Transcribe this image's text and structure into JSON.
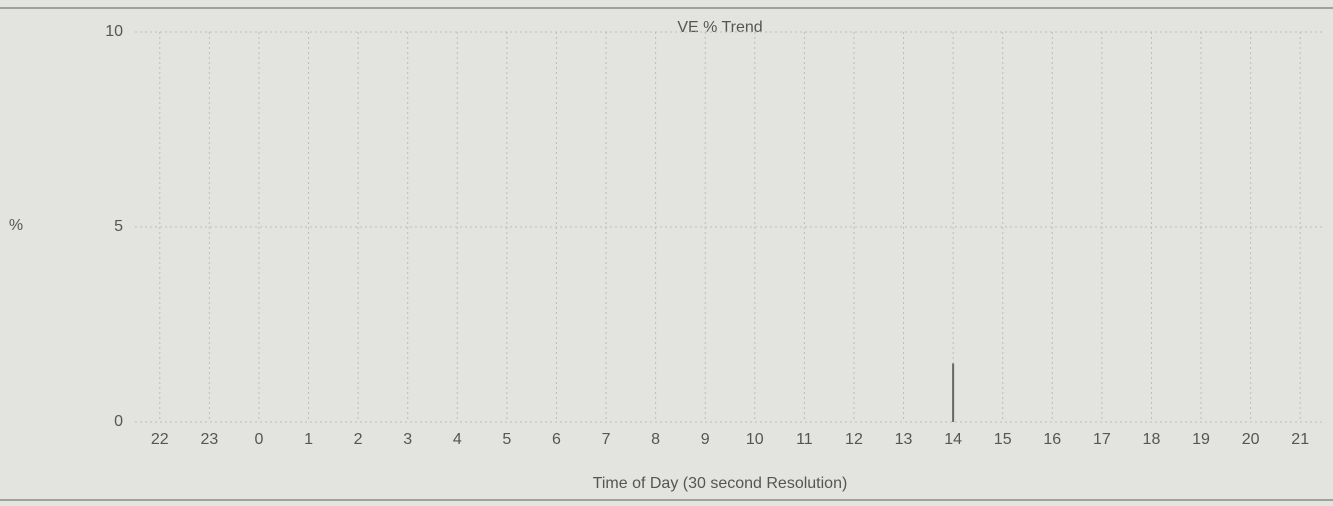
{
  "chart_data": {
    "type": "bar",
    "title": "VE % Trend",
    "y_label": "%",
    "x_label": "Time of Day (30 second Resolution)",
    "categories": [
      22,
      23,
      0,
      1,
      2,
      3,
      4,
      5,
      6,
      7,
      8,
      9,
      10,
      11,
      12,
      13,
      14,
      15,
      16,
      17,
      18,
      19,
      20,
      21
    ],
    "values": [
      null,
      null,
      null,
      null,
      null,
      null,
      null,
      null,
      null,
      null,
      null,
      null,
      null,
      null,
      null,
      null,
      1.5,
      null,
      null,
      null,
      null,
      null,
      null,
      null
    ],
    "color": "#666666",
    "ylim": [
      0,
      10
    ],
    "yticks": [
      0,
      5,
      10
    ],
    "grid": true
  }
}
